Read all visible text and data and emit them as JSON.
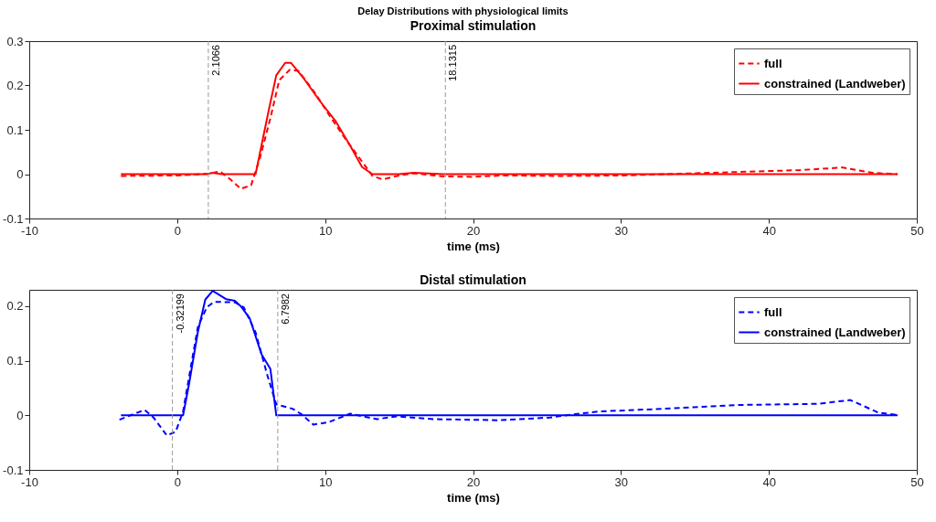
{
  "chart_data": [
    {
      "type": "line",
      "title": "Delay Distributions with physiological limits",
      "subtitle": "Proximal stimulation",
      "xlabel": "time (ms)",
      "xlim": [
        -10,
        50
      ],
      "xticks": [
        -10,
        0,
        10,
        20,
        30,
        40,
        50
      ],
      "ylim": [
        -0.1,
        0.3
      ],
      "yticks": [
        -0.1,
        0,
        0.1,
        0.2,
        0.3
      ],
      "grid": false,
      "legend": "top right",
      "ref_lines": [
        {
          "axis": "x",
          "value": 2.1066,
          "label": "2.1066",
          "color": "#999999",
          "line_style": "dashed"
        },
        {
          "axis": "x",
          "value": 18.1315,
          "label": "18.1315",
          "color": "#999999",
          "line_style": "dashed"
        }
      ],
      "series": [
        {
          "name": "full",
          "color": "#ff0000",
          "line_style": "dashed",
          "x": [
            -3.8,
            0,
            2.1,
            2.9,
            3.6,
            4.3,
            5,
            5.6,
            6.3,
            6.9,
            7.6,
            8.2,
            9.3,
            10.3,
            11.4,
            12.4,
            13.2,
            13.9,
            15,
            16,
            18,
            20,
            22,
            26,
            30,
            33,
            35,
            40,
            42,
            45,
            47,
            48.7
          ],
          "values": [
            -0.004,
            -0.003,
            0.001,
            0.006,
            -0.012,
            -0.033,
            -0.025,
            0.037,
            0.126,
            0.212,
            0.235,
            0.233,
            0.184,
            0.132,
            0.078,
            0.033,
            -0.004,
            -0.012,
            -0.003,
            0.002,
            -0.005,
            -0.006,
            -0.003,
            -0.004,
            -0.003,
            0,
            0.002,
            0.007,
            0.009,
            0.015,
            0.003,
            0
          ]
        },
        {
          "name": "constrained (Landweber)",
          "color": "#ff0000",
          "line_style": "solid",
          "x": [
            -3.8,
            2,
            2.4,
            3,
            5.3,
            6.2,
            6.7,
            7.3,
            7.7,
            8.6,
            9.6,
            10.7,
            11.7,
            12.5,
            13.2,
            15,
            16,
            18,
            48.7
          ],
          "values": [
            0,
            0,
            0.003,
            0,
            0,
            0.146,
            0.223,
            0.251,
            0.251,
            0.214,
            0.167,
            0.12,
            0.064,
            0.016,
            0,
            0,
            0.003,
            0,
            0
          ]
        }
      ]
    },
    {
      "type": "line",
      "title": "Distal stimulation",
      "xlabel": "time (ms)",
      "xlim": [
        -10,
        50
      ],
      "xticks": [
        -10,
        0,
        10,
        20,
        30,
        40,
        50
      ],
      "ylim": [
        -0.1,
        0.23
      ],
      "yticks": [
        -0.1,
        0,
        0.1,
        0.2
      ],
      "grid": false,
      "legend": "top right",
      "ref_lines": [
        {
          "axis": "x",
          "value": -0.32199,
          "label": "-0.32199",
          "color": "#999999",
          "line_style": "dashed"
        },
        {
          "axis": "x",
          "value": 6.7982,
          "label": "6.7982",
          "color": "#999999",
          "line_style": "dashed"
        }
      ],
      "series": [
        {
          "name": "full",
          "color": "#0000ff",
          "line_style": "dashed",
          "x": [
            -3.9,
            -2.2,
            -1.6,
            -0.7,
            -0.1,
            0.4,
            0.9,
            1.4,
            2,
            2.5,
            3.9,
            4.5,
            5.3,
            6.1,
            6.7,
            7.8,
            8.4,
            9.2,
            10.2,
            11.7,
            13.5,
            14.8,
            17.4,
            21.8,
            25.2,
            27.2,
            28.5,
            32.9,
            38.1,
            43.3,
            45.5,
            47.4,
            48.8
          ],
          "values": [
            -0.008,
            0.01,
            -0.004,
            -0.037,
            -0.03,
            0.007,
            0.085,
            0.162,
            0.198,
            0.208,
            0.207,
            0.198,
            0.152,
            0.073,
            0.02,
            0.012,
            0.002,
            -0.017,
            -0.013,
            0.003,
            -0.007,
            -0.002,
            -0.007,
            -0.009,
            -0.004,
            0.003,
            0.007,
            0.012,
            0.019,
            0.021,
            0.028,
            0.005,
            0
          ]
        },
        {
          "name": "constrained (Landweber)",
          "color": "#0000ff",
          "line_style": "solid",
          "x": [
            -3.8,
            0.4,
            0.8,
            1.4,
            1.9,
            2.4,
            3.3,
            3.9,
            4.3,
            4.9,
            5.7,
            6.3,
            6.7,
            48.7
          ],
          "values": [
            0,
            0,
            0.057,
            0.153,
            0.212,
            0.228,
            0.213,
            0.21,
            0.2,
            0.178,
            0.112,
            0.085,
            0,
            0
          ]
        }
      ]
    }
  ]
}
